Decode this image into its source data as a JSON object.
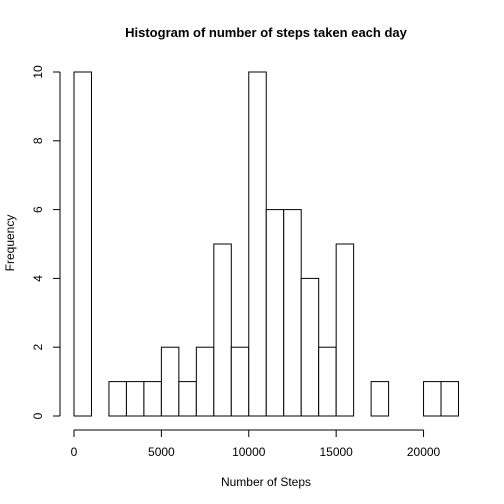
{
  "chart_data": {
    "type": "bar",
    "title": "Histogram of number of steps taken each day",
    "xlabel": "Number of Steps",
    "ylabel": "Frequency",
    "bin_width": 1000,
    "bins": [
      {
        "start": 0,
        "end": 1000,
        "count": 10
      },
      {
        "start": 1000,
        "end": 2000,
        "count": 0
      },
      {
        "start": 2000,
        "end": 3000,
        "count": 1
      },
      {
        "start": 3000,
        "end": 4000,
        "count": 1
      },
      {
        "start": 4000,
        "end": 5000,
        "count": 1
      },
      {
        "start": 5000,
        "end": 6000,
        "count": 2
      },
      {
        "start": 6000,
        "end": 7000,
        "count": 1
      },
      {
        "start": 7000,
        "end": 8000,
        "count": 2
      },
      {
        "start": 8000,
        "end": 9000,
        "count": 5
      },
      {
        "start": 9000,
        "end": 10000,
        "count": 2
      },
      {
        "start": 10000,
        "end": 11000,
        "count": 10
      },
      {
        "start": 11000,
        "end": 12000,
        "count": 6
      },
      {
        "start": 12000,
        "end": 13000,
        "count": 6
      },
      {
        "start": 13000,
        "end": 14000,
        "count": 4
      },
      {
        "start": 14000,
        "end": 15000,
        "count": 2
      },
      {
        "start": 15000,
        "end": 16000,
        "count": 5
      },
      {
        "start": 16000,
        "end": 17000,
        "count": 0
      },
      {
        "start": 17000,
        "end": 18000,
        "count": 1
      },
      {
        "start": 18000,
        "end": 19000,
        "count": 0
      },
      {
        "start": 19000,
        "end": 20000,
        "count": 0
      },
      {
        "start": 20000,
        "end": 21000,
        "count": 1
      },
      {
        "start": 21000,
        "end": 22000,
        "count": 1
      }
    ],
    "xlim": [
      0,
      22000
    ],
    "ylim": [
      0,
      10
    ],
    "x_ticks": [
      0,
      5000,
      10000,
      15000,
      20000
    ],
    "y_ticks": [
      0,
      2,
      4,
      6,
      8,
      10
    ],
    "grid": false,
    "legend": "none"
  }
}
